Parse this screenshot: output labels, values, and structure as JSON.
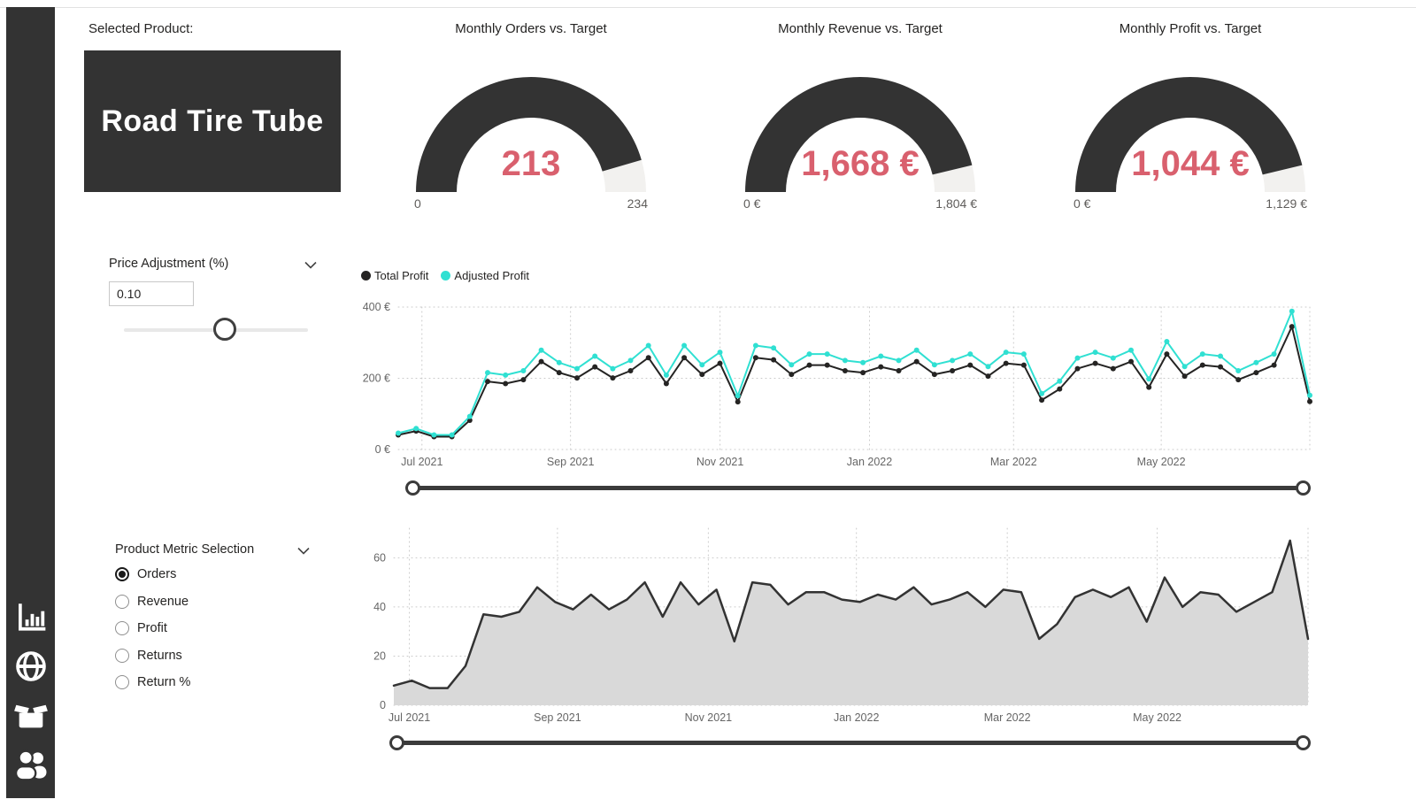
{
  "colors": {
    "sidebar_bg": "#333333",
    "card_bg": "#333333",
    "gauge_fill": "#333333",
    "gauge_rest": "#f2f1ef",
    "value_red": "#d9606e",
    "total_profit_line": "#252423",
    "adjusted_profit_line": "#30e0d2",
    "area_fill": "#d9d9d9",
    "grid": "#c9c9c9",
    "axis_text": "#666666"
  },
  "sidebar": {
    "icons": [
      {
        "name": "bar-chart-icon"
      },
      {
        "name": "globe-icon"
      },
      {
        "name": "open-box-icon"
      },
      {
        "name": "people-icon"
      }
    ]
  },
  "product": {
    "label": "Selected Product:",
    "name": "Road Tire Tube"
  },
  "gauges": [
    {
      "title": "Monthly Orders vs. Target",
      "value": "213",
      "min": "0",
      "max": "234",
      "fraction": 0.91
    },
    {
      "title": "Monthly Revenue vs. Target",
      "value": "1,668 €",
      "min": "0 €",
      "max": "1,804 €",
      "fraction": 0.925
    },
    {
      "title": "Monthly Profit vs. Target",
      "value": "1,044 €",
      "min": "0 €",
      "max": "1,129 €",
      "fraction": 0.925
    }
  ],
  "price_adjustment": {
    "label": "Price Adjustment (%)",
    "value": "0.10",
    "slider_fraction": 0.55
  },
  "metric_selection": {
    "label": "Product Metric Selection",
    "options": [
      {
        "label": "Orders",
        "selected": true
      },
      {
        "label": "Revenue",
        "selected": false
      },
      {
        "label": "Profit",
        "selected": false
      },
      {
        "label": "Returns",
        "selected": false
      },
      {
        "label": "Return %",
        "selected": false
      }
    ]
  },
  "range_sliders": [
    {
      "start_fraction": 0,
      "end_fraction": 1
    },
    {
      "start_fraction": 0,
      "end_fraction": 1
    }
  ],
  "chart_data": [
    {
      "type": "line",
      "grid": "dotted",
      "legend_position": "top-left",
      "ylim": [
        0,
        400
      ],
      "y_ticks": [
        {
          "v": 0,
          "label": "0 €"
        },
        {
          "v": 200,
          "label": "200 €"
        },
        {
          "v": 400,
          "label": "400 €"
        }
      ],
      "x_ticks": [
        {
          "f": 0.026,
          "label": "Jul 2021"
        },
        {
          "f": 0.189,
          "label": "Sep 2021"
        },
        {
          "f": 0.353,
          "label": "Nov 2021"
        },
        {
          "f": 0.517,
          "label": "Jan 2022"
        },
        {
          "f": 0.675,
          "label": "Mar 2022"
        },
        {
          "f": 0.837,
          "label": "May 2022"
        },
        {
          "f": 1.0
        }
      ],
      "series": [
        {
          "name": "Total Profit",
          "color": "#252423",
          "values": [
            41,
            52,
            36,
            36,
            82,
            191,
            185,
            196,
            247,
            216,
            201,
            232,
            201,
            221,
            258,
            185,
            258,
            211,
            242,
            134,
            258,
            252,
            211,
            237,
            237,
            221,
            216,
            232,
            221,
            247,
            211,
            221,
            237,
            206,
            242,
            237,
            139,
            170,
            227,
            242,
            227,
            247,
            175,
            268,
            206,
            237,
            232,
            196,
            216,
            237,
            345,
            135
          ]
        },
        {
          "name": "Adjusted Profit",
          "color": "#30e0d2",
          "values": [
            46,
            59,
            41,
            41,
            93,
            216,
            209,
            221,
            279,
            244,
            227,
            262,
            227,
            250,
            292,
            209,
            292,
            238,
            273,
            151,
            292,
            285,
            238,
            268,
            268,
            250,
            244,
            262,
            250,
            279,
            238,
            250,
            268,
            233,
            273,
            268,
            157,
            192,
            257,
            273,
            257,
            279,
            198,
            303,
            233,
            268,
            262,
            221,
            244,
            268,
            388,
            152
          ]
        }
      ]
    },
    {
      "type": "area",
      "grid": "dotted",
      "ylim": [
        0,
        72
      ],
      "y_ticks": [
        {
          "v": 0,
          "label": "0"
        },
        {
          "v": 20,
          "label": "20"
        },
        {
          "v": 40,
          "label": "40"
        },
        {
          "v": 60,
          "label": "60"
        }
      ],
      "x_ticks": [
        {
          "f": 0.017,
          "label": "Jul 2021"
        },
        {
          "f": 0.179,
          "label": "Sep 2021"
        },
        {
          "f": 0.344,
          "label": "Nov 2021"
        },
        {
          "f": 0.506,
          "label": "Jan 2022"
        },
        {
          "f": 0.671,
          "label": "Mar 2022"
        },
        {
          "f": 0.835,
          "label": "May 2022"
        },
        {
          "f": 1.0
        }
      ],
      "series": [
        {
          "name": "Orders",
          "color": "#333333",
          "fill": "#d9d9d9",
          "values": [
            8,
            10,
            7,
            7,
            16,
            37,
            36,
            38,
            48,
            42,
            39,
            45,
            39,
            43,
            50,
            36,
            50,
            41,
            47,
            26,
            50,
            49,
            41,
            46,
            46,
            43,
            42,
            45,
            43,
            48,
            41,
            43,
            46,
            40,
            47,
            46,
            27,
            33,
            44,
            47,
            44,
            48,
            34,
            52,
            40,
            46,
            45,
            38,
            42,
            46,
            67,
            27
          ]
        }
      ]
    }
  ]
}
